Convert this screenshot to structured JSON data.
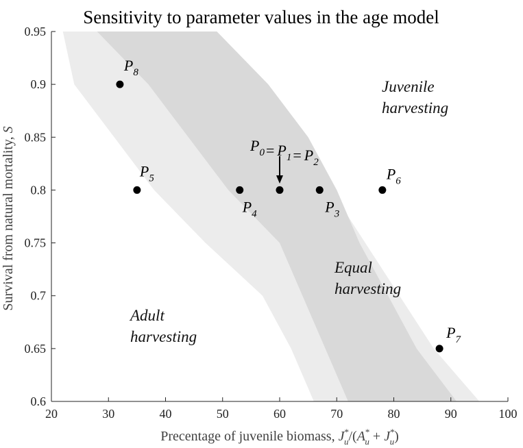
{
  "chart_data": {
    "type": "scatter",
    "title": "Sensitivity to parameter values in the age model",
    "xlabel": "Precentage of juvenile biomass, J*u/(A*u + J*u)",
    "ylabel": "Survival from natural mortality, S",
    "xlim": [
      20,
      100
    ],
    "ylim": [
      0.6,
      0.95
    ],
    "x_ticks": [
      "20",
      "30",
      "40",
      "50",
      "60",
      "70",
      "80",
      "90",
      "100"
    ],
    "y_ticks": [
      "0.6",
      "0.65",
      "0.7",
      "0.75",
      "0.8",
      "0.85",
      "0.9",
      "0.95"
    ],
    "colors": {
      "outer_band": "#ececec",
      "inner_band": "#d9d9d9",
      "points": "#000000"
    },
    "bands": [
      {
        "name": "outer",
        "polygon": [
          [
            22,
            0.95
          ],
          [
            41,
            0.95
          ],
          [
            55,
            0.9
          ],
          [
            63,
            0.85
          ],
          [
            69,
            0.8
          ],
          [
            75,
            0.75
          ],
          [
            81,
            0.7
          ],
          [
            87,
            0.65
          ],
          [
            95,
            0.6
          ],
          [
            66,
            0.6
          ],
          [
            62,
            0.65
          ],
          [
            57,
            0.7
          ],
          [
            47,
            0.75
          ],
          [
            38,
            0.8
          ],
          [
            31,
            0.85
          ],
          [
            24,
            0.9
          ]
        ]
      },
      {
        "name": "inner",
        "polygon": [
          [
            28,
            0.95
          ],
          [
            49,
            0.95
          ],
          [
            58,
            0.9
          ],
          [
            65,
            0.85
          ],
          [
            70,
            0.8
          ],
          [
            74,
            0.75
          ],
          [
            79,
            0.7
          ],
          [
            84,
            0.65
          ],
          [
            91,
            0.6
          ],
          [
            72,
            0.6
          ],
          [
            68,
            0.65
          ],
          [
            64,
            0.7
          ],
          [
            60,
            0.75
          ],
          [
            51,
            0.8
          ],
          [
            44,
            0.85
          ],
          [
            37,
            0.9
          ]
        ]
      }
    ],
    "points": [
      {
        "name": "P",
        "sub": "8",
        "x": 32,
        "y": 0.9
      },
      {
        "name": "P",
        "sub": "5",
        "x": 35,
        "y": 0.8
      },
      {
        "name": "P",
        "sub": "4",
        "x": 53,
        "y": 0.8
      },
      {
        "name": "P",
        "sub": "0",
        "x": 60,
        "y": 0.8
      },
      {
        "name": "P",
        "sub": "3",
        "x": 67,
        "y": 0.8
      },
      {
        "name": "P",
        "sub": "6",
        "x": 78,
        "y": 0.8
      },
      {
        "name": "P",
        "sub": "7",
        "x": 88,
        "y": 0.65
      }
    ],
    "annotations": {
      "equality": {
        "text": "P0 = P1 = P2",
        "segments": [
          [
            "P",
            "0"
          ],
          [
            "P",
            "1"
          ],
          [
            "P",
            "2"
          ]
        ],
        "eq": "="
      },
      "juvenile": [
        "Juvenile",
        "harvesting"
      ],
      "equal": [
        "Equal",
        "harvesting"
      ],
      "adult": [
        "Adult",
        "harvesting"
      ]
    }
  }
}
